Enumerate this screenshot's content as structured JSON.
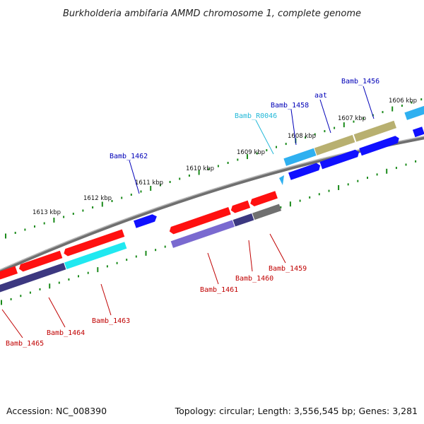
{
  "title": "Burkholderia ambifaria AMMD chromosome 1, complete genome",
  "footer": {
    "accession": "Accession: NC_008390",
    "topology": "Topology: circular; Length: 3,556,545 bp; Genes: 3,281"
  },
  "colors": {
    "red": "#ff1010",
    "blue": "#1010ff",
    "cyan": "#20e8f0",
    "light_blue": "#2fb0f0",
    "purple": "#3c3880",
    "lavender": "#7a6ad0",
    "olive": "#b8b070",
    "gray": "#707070",
    "tick_green": "#1a8a1a",
    "axis_gray": "#8a8a8a"
  },
  "kbp_labels": [
    "1606 kbp",
    "1607 kbp",
    "1608 kbp",
    "1609 kbp",
    "1610 kbp",
    "1611 kbp",
    "1612 kbp",
    "1613 kbp"
  ],
  "gene_labels": [
    {
      "text": "Bamb_1456",
      "color": "blue"
    },
    {
      "text": "aat",
      "color": "blue"
    },
    {
      "text": "Bamb_1458",
      "color": "blue"
    },
    {
      "text": "Bamb_R0046",
      "color": "cyan"
    },
    {
      "text": "Bamb_1462",
      "color": "blue"
    },
    {
      "text": "Bamb_1459",
      "color": "red"
    },
    {
      "text": "Bamb_1460",
      "color": "red"
    },
    {
      "text": "Bamb_1461",
      "color": "red"
    },
    {
      "text": "Bamb_1463",
      "color": "red"
    },
    {
      "text": "Bamb_1464",
      "color": "red"
    },
    {
      "text": "Bamb_1465",
      "color": "red"
    }
  ]
}
